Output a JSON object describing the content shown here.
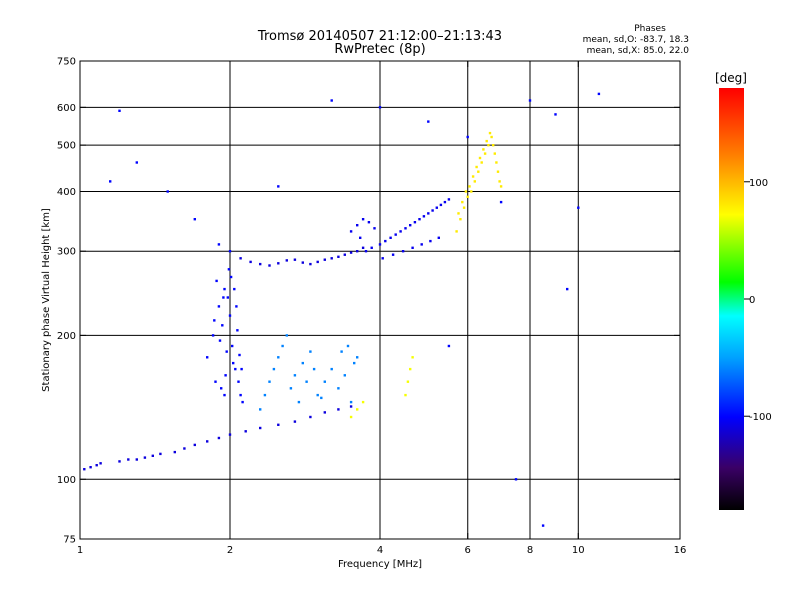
{
  "chart_data": {
    "type": "scatter",
    "title": "Tromsø 20140507 21:12:00–21:13:43",
    "subtitle": "RwPretec (8p)",
    "xlabel": "Frequency [MHz]",
    "ylabel": "Stationary phase Virtual Height [km]",
    "x_scale": "log",
    "y_scale": "log",
    "xlim": [
      1,
      16
    ],
    "ylim": [
      75,
      750
    ],
    "x_ticks": [
      1,
      2,
      4,
      6,
      8,
      10,
      16
    ],
    "y_ticks": [
      75,
      100,
      200,
      300,
      400,
      500,
      600,
      750
    ],
    "x_gridlines": [
      2,
      4,
      6,
      8,
      10
    ],
    "y_gridlines": [
      100,
      200,
      300,
      400,
      500,
      600
    ],
    "grid": true,
    "phases": {
      "title": "Phases",
      "line_o": "mean, sd,O: -83.7, 18.3",
      "line_x": "mean, sd,X:  85.0, 22.0"
    },
    "colorbar": {
      "label": "[deg]",
      "range": [
        -180,
        180
      ],
      "ticks": [
        100,
        0,
        -100
      ],
      "colormap": "rainbow"
    },
    "series": [
      {
        "name": "trace-low-ramp",
        "x": [
          1.02,
          1.05,
          1.08,
          1.1,
          1.2,
          1.25,
          1.3,
          1.35,
          1.4,
          1.45,
          1.55,
          1.62,
          1.7,
          1.8,
          1.9,
          2.0,
          2.15,
          2.3,
          2.5,
          2.7,
          2.9,
          3.1,
          3.3,
          3.5
        ],
        "y": [
          105,
          106,
          107,
          108,
          109,
          110,
          110,
          111,
          112,
          113,
          114,
          116,
          118,
          120,
          122,
          124,
          126,
          128,
          130,
          132,
          135,
          138,
          140,
          142
        ],
        "phase": -110
      },
      {
        "name": "trace-cluster-2mhz",
        "x": [
          1.8,
          1.85,
          1.9,
          1.95,
          2.0,
          2.02,
          2.05,
          2.08,
          2.1,
          2.12,
          1.88,
          1.93,
          1.98,
          2.03,
          2.07,
          1.92,
          1.97,
          2.01,
          2.06,
          1.86,
          1.91,
          1.96,
          2.04,
          2.09,
          1.94,
          1.99,
          2.11,
          1.87,
          2.0,
          1.95
        ],
        "y": [
          180,
          200,
          230,
          250,
          220,
          190,
          170,
          160,
          150,
          145,
          260,
          210,
          240,
          175,
          205,
          155,
          185,
          265,
          230,
          215,
          195,
          165,
          250,
          182,
          240,
          275,
          170,
          160,
          300,
          150
        ],
        "phase": -100
      },
      {
        "name": "trace-ridge-2-4mhz",
        "x": [
          2.1,
          2.2,
          2.3,
          2.4,
          2.5,
          2.6,
          2.7,
          2.8,
          2.9,
          3.0,
          3.1,
          3.2,
          3.3,
          3.4,
          3.5,
          3.6,
          3.7
        ],
        "y": [
          290,
          285,
          282,
          280,
          283,
          287,
          288,
          284,
          282,
          285,
          288,
          290,
          292,
          295,
          298,
          300,
          305
        ],
        "phase": -110
      },
      {
        "name": "trace-columns-2-4mhz",
        "x": [
          2.3,
          2.35,
          2.4,
          2.45,
          2.5,
          2.55,
          2.6,
          2.7,
          2.8,
          2.9,
          3.0,
          3.1,
          3.2,
          3.3,
          3.4,
          3.5,
          3.55,
          3.6,
          3.45,
          3.35,
          2.65,
          2.75,
          2.85,
          2.95,
          3.05
        ],
        "y": [
          140,
          150,
          160,
          170,
          180,
          190,
          200,
          165,
          175,
          185,
          150,
          160,
          170,
          155,
          165,
          145,
          175,
          180,
          190,
          185,
          155,
          145,
          160,
          170,
          148
        ],
        "phase": -60
      },
      {
        "name": "trace-3-5mhz",
        "x": [
          3.5,
          3.6,
          3.7,
          3.8,
          3.9,
          4.0,
          4.1,
          4.2,
          4.3,
          4.4,
          4.5,
          4.6,
          4.7,
          4.8,
          4.9,
          5.0,
          5.1,
          5.2,
          5.3,
          5.4,
          5.5,
          3.65,
          3.75,
          3.85,
          4.05,
          4.25,
          4.45,
          4.65,
          4.85,
          5.05,
          5.25
        ],
        "y": [
          330,
          340,
          350,
          345,
          335,
          310,
          315,
          320,
          325,
          330,
          335,
          340,
          345,
          350,
          355,
          360,
          365,
          370,
          375,
          380,
          385,
          320,
          300,
          305,
          290,
          295,
          300,
          305,
          310,
          315,
          320
        ],
        "phase": -105
      },
      {
        "name": "trace-x-mode-high",
        "x": [
          5.7,
          5.8,
          5.9,
          6.0,
          6.1,
          6.2,
          6.3,
          6.4,
          6.5,
          6.6,
          6.7,
          6.8,
          6.9,
          7.0,
          5.75,
          5.85,
          5.95,
          6.05,
          6.15,
          6.25,
          6.35,
          6.45,
          6.55,
          6.65,
          6.75,
          6.85,
          6.95
        ],
        "y": [
          330,
          350,
          370,
          390,
          400,
          420,
          440,
          460,
          480,
          500,
          520,
          480,
          440,
          410,
          360,
          380,
          400,
          410,
          430,
          450,
          470,
          490,
          510,
          530,
          500,
          460,
          420
        ],
        "phase": 80
      },
      {
        "name": "trace-green-4-5mhz",
        "x": [
          3.5,
          3.6,
          3.7,
          4.5,
          4.55,
          4.6,
          4.65
        ],
        "y": [
          135,
          140,
          145,
          150,
          160,
          170,
          180
        ],
        "phase": 70
      },
      {
        "name": "trace-scattered",
        "x": [
          1.15,
          1.2,
          1.3,
          1.5,
          1.7,
          1.9,
          2.5,
          3.2,
          4.0,
          5.0,
          6.0,
          7.0,
          8.0,
          9.0,
          10.0,
          11.0,
          8.5,
          9.5,
          7.5,
          5.5
        ],
        "y": [
          420,
          590,
          460,
          400,
          350,
          310,
          410,
          620,
          600,
          560,
          520,
          380,
          620,
          580,
          370,
          640,
          80,
          250,
          100,
          190
        ],
        "phase": -100
      }
    ]
  }
}
